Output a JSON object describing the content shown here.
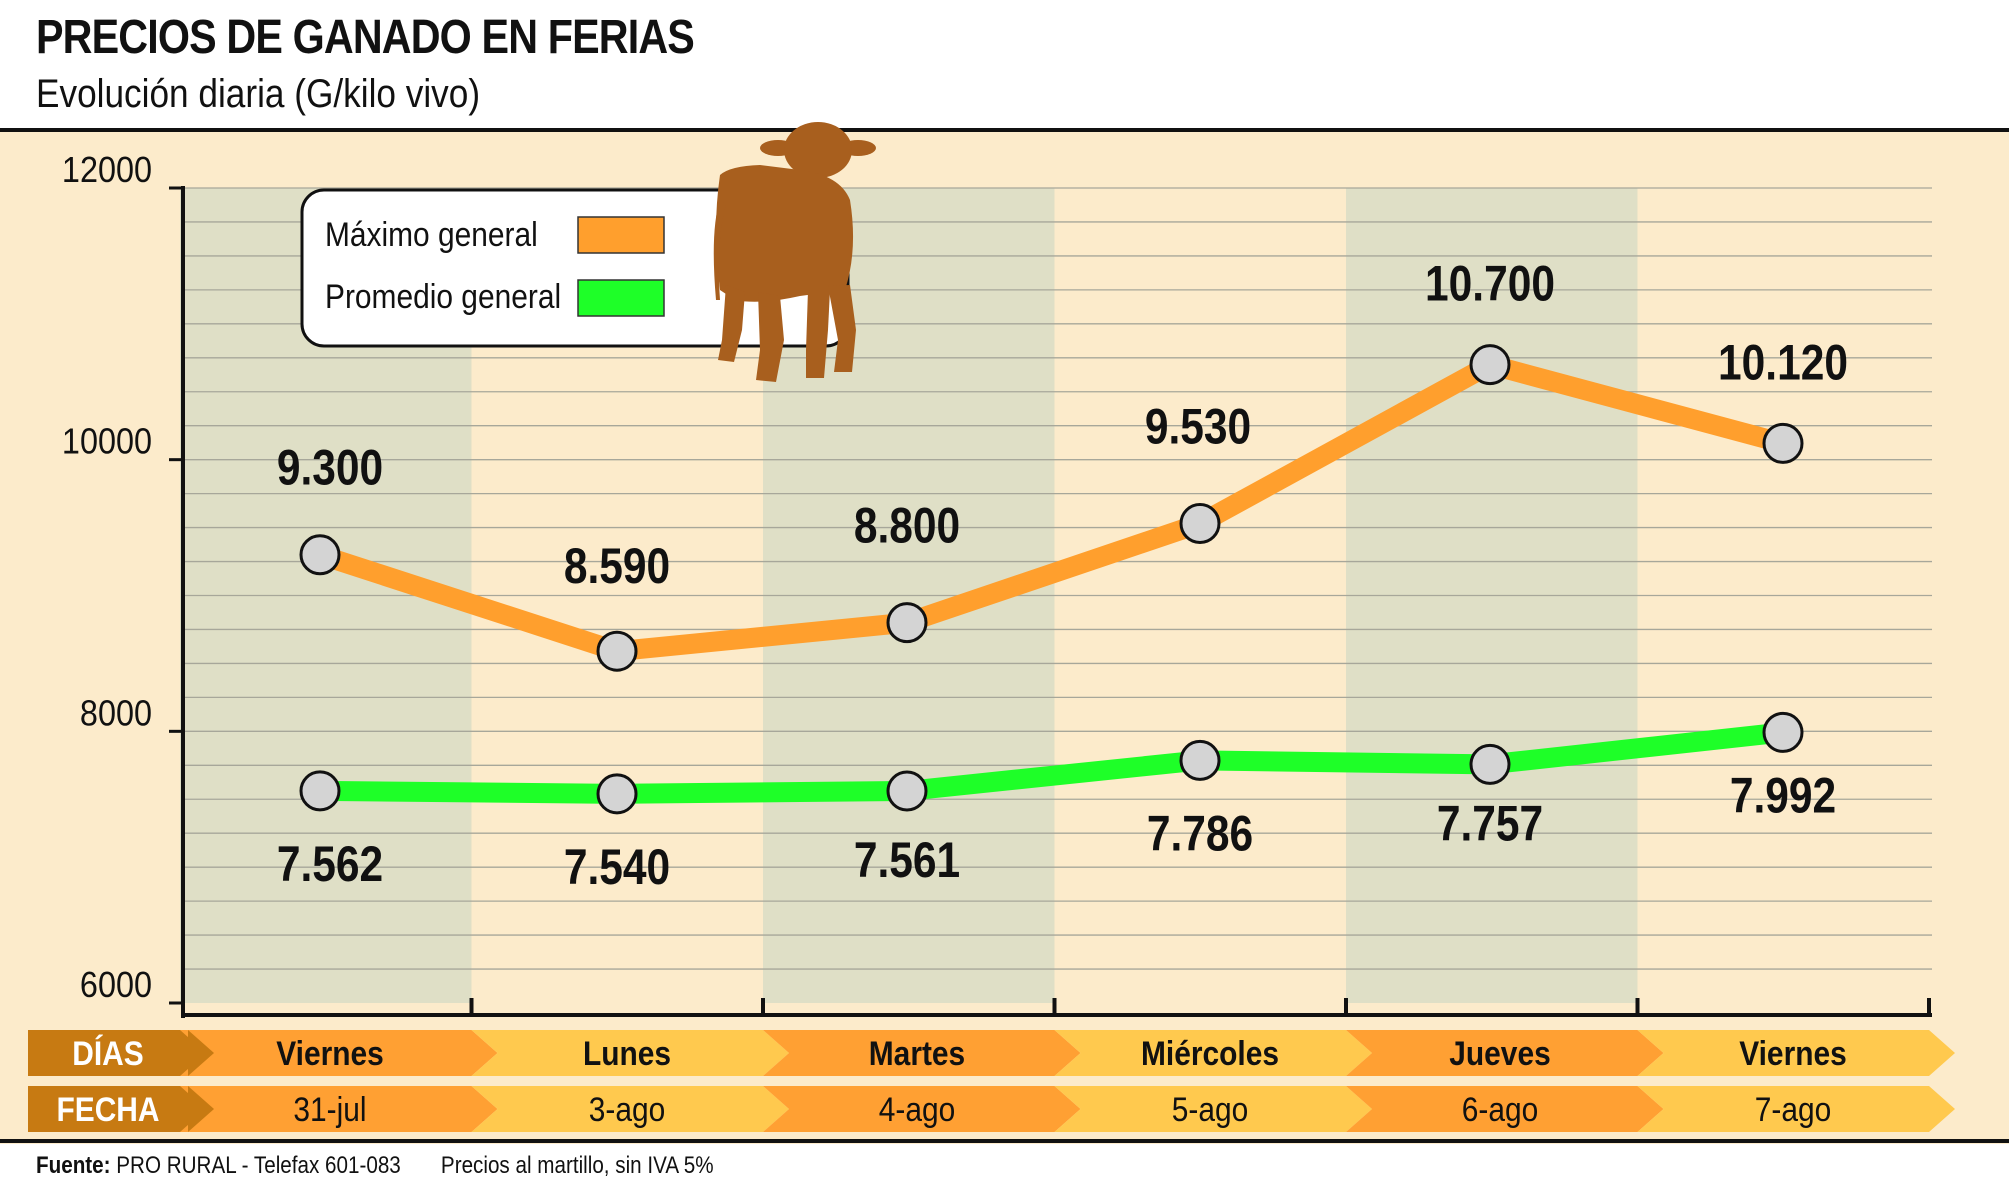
{
  "header": {
    "title": "PRECIOS DE GANADO EN FERIAS",
    "subtitle": "Evolución diaria (G/kilo vivo)"
  },
  "colors": {
    "background": "#FCEBCB",
    "shaded_band": "#DFDFC6",
    "max_line": "#FF9F2D",
    "avg_line": "#1EFF28",
    "marker_fill": "#D4D4D4",
    "cow": "#A85F1E",
    "row_label_bg": "#C77A12",
    "row_dark": "#FFA033",
    "row_light": "#FFC94E"
  },
  "legend": {
    "max_label": "Máximo general",
    "avg_label": "Promedio general",
    "icon": "cow-icon"
  },
  "rows": {
    "days_label": "DÍAS",
    "date_label": "FECHA"
  },
  "chart_data": {
    "type": "line",
    "categories": [
      "Viernes",
      "Lunes",
      "Martes",
      "Miércoles",
      "Jueves",
      "Viernes"
    ],
    "dates": [
      "31-jul",
      "3-ago",
      "4-ago",
      "5-ago",
      "6-ago",
      "7-ago"
    ],
    "ylim": [
      6000,
      12000
    ],
    "yticks": [
      "12000",
      "10000",
      "8000",
      "6000"
    ],
    "grid": true,
    "legend_position": "top-left",
    "series": [
      {
        "name": "Máximo general",
        "values": [
          9300,
          8590,
          8800,
          9530,
          10700,
          10120
        ],
        "labels": [
          "9.300",
          "8.590",
          "8.800",
          "9.530",
          "10.700",
          "10.120"
        ]
      },
      {
        "name": "Promedio general",
        "values": [
          7562,
          7540,
          7561,
          7786,
          7757,
          7992
        ],
        "labels": [
          "7.562",
          "7.540",
          "7.561",
          "7.786",
          "7.757",
          "7.992"
        ]
      }
    ]
  },
  "footer": {
    "source_label": "Fuente:",
    "source_text": "PRO RURAL - Telefax 601-083",
    "note": "Precios al martillo, sin IVA 5%"
  }
}
